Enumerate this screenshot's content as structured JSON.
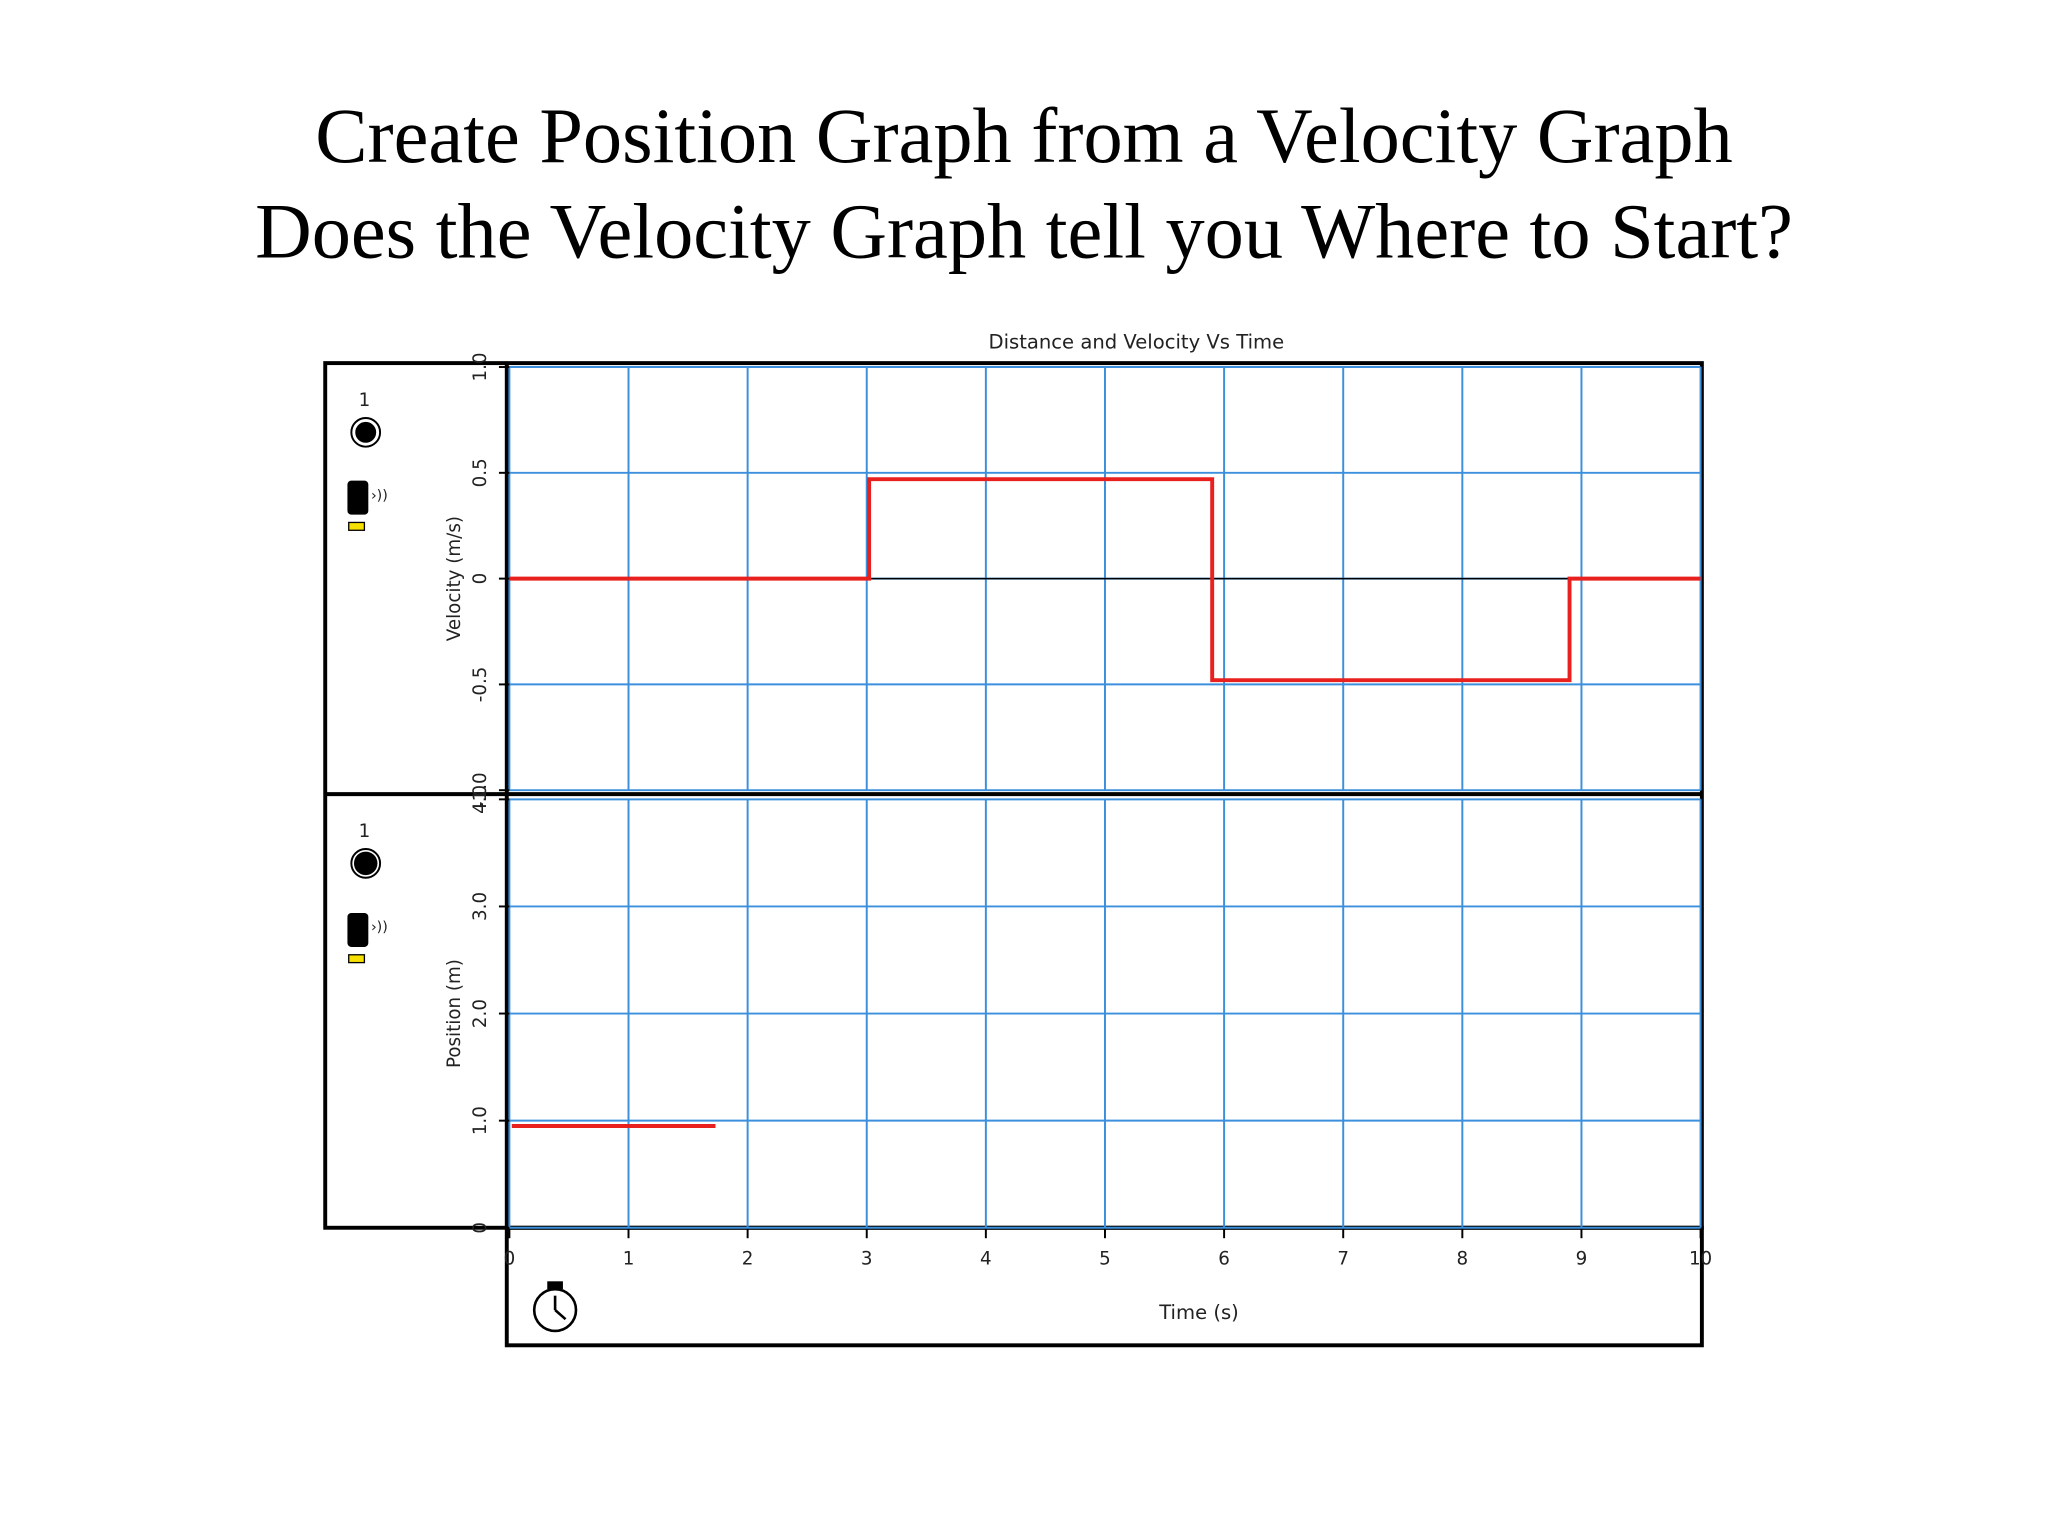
{
  "slide_title": [
    "Create Position Graph from a Velocity Graph",
    "Does the Velocity Graph tell you Where to Start?"
  ],
  "chart_data": [
    {
      "type": "line",
      "title": "Distance  and  Velocity  Vs  Time",
      "probe_label": "1",
      "y_label": "Velocity (m/s)",
      "xlim": [
        0,
        10
      ],
      "xticks": [
        0,
        1,
        2,
        3,
        4,
        5,
        6,
        7,
        8,
        9,
        10
      ],
      "ylim": [
        -1.0,
        1.0
      ],
      "yticks": [
        {
          "value": -1.0,
          "label": "-1.0"
        },
        {
          "value": -0.5,
          "label": "-0.5"
        },
        0,
        0.5,
        {
          "value": 1.0,
          "label": "1.0"
        }
      ],
      "grid": true,
      "zero_line": true,
      "x": [
        0,
        3.02,
        3.02,
        5.9,
        5.9,
        8.9,
        8.9,
        10
      ],
      "series": [
        {
          "color": "#e8201e",
          "values": [
            0,
            0,
            0.47,
            0.47,
            -0.48,
            -0.48,
            0,
            0
          ]
        }
      ]
    },
    {
      "type": "line",
      "probe_label": "1",
      "y_label": "Position (m)",
      "x_label": "Time (s)",
      "xlim": [
        0,
        10
      ],
      "xticks": [
        0,
        1,
        2,
        3,
        4,
        5,
        6,
        7,
        8,
        9,
        10
      ],
      "ylim": [
        0,
        4.0
      ],
      "yticks": [
        0,
        {
          "value": 1.0,
          "label": "1.0"
        },
        {
          "value": 2.0,
          "label": "2.0"
        },
        {
          "value": 3.0,
          "label": "3.0"
        },
        {
          "value": 4.0,
          "label": "4.0"
        }
      ],
      "grid": true,
      "x": [
        0.02,
        1.73
      ],
      "series": [
        {
          "color": "#e8201e",
          "values": [
            0.95,
            0.95
          ]
        }
      ]
    }
  ]
}
